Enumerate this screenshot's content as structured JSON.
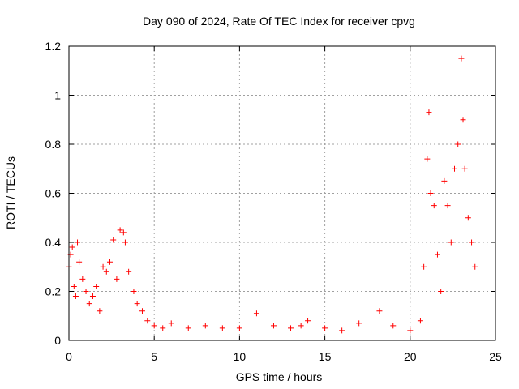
{
  "chart_data": {
    "type": "scatter",
    "title": "Day 090 of 2024, Rate Of TEC Index for receiver cpvg",
    "xlabel": "GPS time / hours",
    "ylabel": "ROTI / TECUs",
    "xlim": [
      0,
      25
    ],
    "ylim": [
      0,
      1.2
    ],
    "xticks": [
      "0",
      "5",
      "10",
      "15",
      "20",
      "25"
    ],
    "yticks": [
      "0",
      "0.2",
      "0.4",
      "0.6",
      "0.8",
      "1",
      "1.2"
    ],
    "grid": true,
    "marker": "+",
    "colors": {
      "series": "#ff0000",
      "grid": "#a0a0a0",
      "axis": "#000000"
    },
    "series": [
      {
        "values": [
          [
            0.0,
            0.3
          ],
          [
            0.1,
            0.35
          ],
          [
            0.2,
            0.38
          ],
          [
            0.3,
            0.22
          ],
          [
            0.4,
            0.18
          ],
          [
            0.5,
            0.4
          ],
          [
            0.6,
            0.32
          ],
          [
            0.8,
            0.25
          ],
          [
            1.0,
            0.2
          ],
          [
            1.2,
            0.15
          ],
          [
            1.4,
            0.18
          ],
          [
            1.6,
            0.22
          ],
          [
            1.8,
            0.12
          ],
          [
            2.0,
            0.3
          ],
          [
            2.2,
            0.28
          ],
          [
            2.4,
            0.32
          ],
          [
            2.6,
            0.41
          ],
          [
            2.8,
            0.25
          ],
          [
            3.0,
            0.45
          ],
          [
            3.2,
            0.44
          ],
          [
            3.3,
            0.4
          ],
          [
            3.5,
            0.28
          ],
          [
            3.8,
            0.2
          ],
          [
            4.0,
            0.15
          ],
          [
            4.3,
            0.12
          ],
          [
            4.6,
            0.08
          ],
          [
            5.0,
            0.06
          ],
          [
            5.5,
            0.05
          ],
          [
            6.0,
            0.07
          ],
          [
            7.0,
            0.05
          ],
          [
            8.0,
            0.06
          ],
          [
            9.0,
            0.05
          ],
          [
            10.0,
            0.05
          ],
          [
            11.0,
            0.11
          ],
          [
            12.0,
            0.06
          ],
          [
            13.0,
            0.05
          ],
          [
            13.6,
            0.06
          ],
          [
            14.0,
            0.08
          ],
          [
            15.0,
            0.05
          ],
          [
            16.0,
            0.04
          ],
          [
            17.0,
            0.07
          ],
          [
            18.2,
            0.12
          ],
          [
            19.0,
            0.06
          ],
          [
            20.0,
            0.04
          ],
          [
            20.6,
            0.08
          ],
          [
            20.8,
            0.3
          ],
          [
            21.0,
            0.74
          ],
          [
            21.1,
            0.93
          ],
          [
            21.2,
            0.6
          ],
          [
            21.4,
            0.55
          ],
          [
            21.6,
            0.35
          ],
          [
            21.8,
            0.2
          ],
          [
            22.0,
            0.65
          ],
          [
            22.2,
            0.55
          ],
          [
            22.4,
            0.4
          ],
          [
            22.6,
            0.7
          ],
          [
            22.8,
            0.8
          ],
          [
            23.0,
            1.15
          ],
          [
            23.1,
            0.9
          ],
          [
            23.2,
            0.7
          ],
          [
            23.4,
            0.5
          ],
          [
            23.6,
            0.4
          ],
          [
            23.8,
            0.3
          ]
        ]
      }
    ]
  }
}
